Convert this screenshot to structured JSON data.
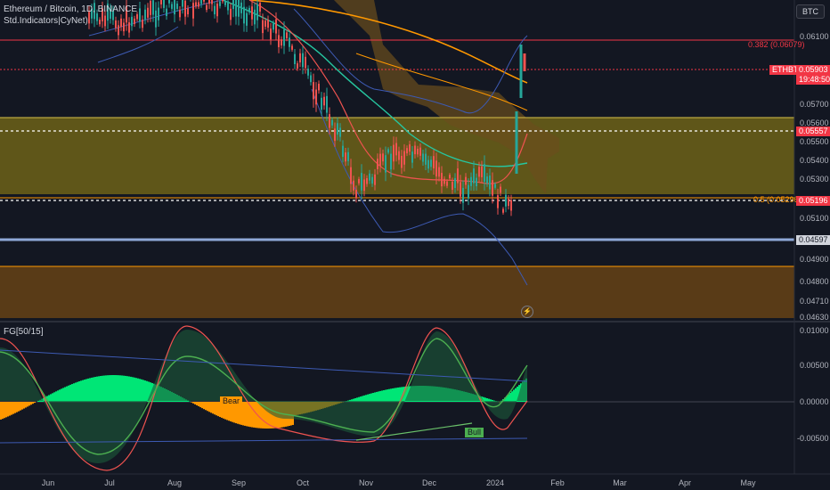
{
  "header": {
    "title": "Ethereum / Bitcoin, 1D, BINANCE",
    "indicator": "Std.Indicators|CyNet)",
    "currency_button": "BTC"
  },
  "sub_panel": {
    "title": "FG[50/15]"
  },
  "price_axis": {
    "ticks": [
      "0.06100",
      "0.05700",
      "0.05600",
      "0.05500",
      "0.05400",
      "0.05300",
      "0.05100",
      "0.04900",
      "0.04800",
      "0.04710",
      "0.04630"
    ],
    "fib_382": "0.382 (0.06079)",
    "fib_382_value": "0.06079",
    "fib_05": "0.5 (0.05296)",
    "badge_ethbtc": "ETHBTC",
    "badge_price": "0.05903",
    "badge_countdown": "19:48:50",
    "badge_level1": "0.05557",
    "badge_level2": "0.05196",
    "badge_level3": "0.04597"
  },
  "osc_axis": {
    "ticks": [
      "0.01000",
      "0.00500",
      "0.00000",
      "-0.00500"
    ]
  },
  "time_axis": {
    "labels": [
      "Jun",
      "Jul",
      "Aug",
      "Sep",
      "Oct",
      "Nov",
      "Dec",
      "2024",
      "Feb",
      "Mar",
      "Apr",
      "May"
    ]
  },
  "osc_labels": {
    "bear": "Bear",
    "bull": "Bull"
  },
  "icons": {
    "bolt": "lightning-icon"
  },
  "colors": {
    "background": "#131722",
    "up": "#26a69a",
    "down": "#ef5350",
    "resistance": "#f23645",
    "zone_yellow": "#8a7a18",
    "zone_orange": "#6b4515",
    "blue_line": "#8fa8d8",
    "osc_orange": "#ff9800",
    "osc_green": "#00e676"
  }
}
